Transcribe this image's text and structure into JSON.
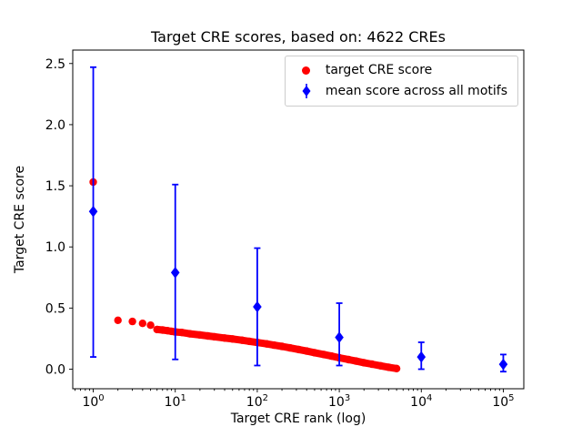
{
  "chart_data": {
    "type": "scatter",
    "title": "Target CRE scores, based on: 4622 CREs",
    "xlabel": "Target CRE rank (log)",
    "ylabel": "Target CRE score",
    "xscale": "log",
    "xlim": [
      0.5623,
      177827
    ],
    "ylim": [
      -0.16,
      2.61
    ],
    "yticks": [
      0.0,
      0.5,
      1.0,
      1.5,
      2.0,
      2.5
    ],
    "xtick_exponents": [
      0,
      1,
      2,
      3,
      4,
      5
    ],
    "grid": false,
    "legend_position": "upper right",
    "colors": {
      "target_series": "#ff0000",
      "mean_series": "#0000ff",
      "axes": "#000000",
      "legend_border": "#cccccc"
    },
    "series": [
      {
        "name": "target CRE score",
        "type": "scatter",
        "marker": "circle",
        "color": "#ff0000",
        "x": [
          1,
          2,
          3,
          4,
          5,
          6,
          7,
          8,
          9,
          10,
          12,
          15,
          20,
          25,
          30,
          40,
          50,
          65,
          80,
          100,
          130,
          160,
          200,
          250,
          320,
          400,
          500,
          650,
          800,
          1000,
          1300,
          1600,
          2000,
          2500,
          3200,
          4000,
          5000
        ],
        "y": [
          1.53,
          0.4,
          0.39,
          0.375,
          0.36,
          0.325,
          0.32,
          0.315,
          0.31,
          0.305,
          0.3,
          0.29,
          0.28,
          0.272,
          0.265,
          0.255,
          0.247,
          0.237,
          0.228,
          0.218,
          0.207,
          0.197,
          0.186,
          0.174,
          0.161,
          0.148,
          0.135,
          0.12,
          0.107,
          0.093,
          0.078,
          0.066,
          0.053,
          0.041,
          0.028,
          0.016,
          0.005
        ]
      },
      {
        "name": "mean score across all motifs",
        "type": "errorbar",
        "marker": "diamond",
        "color": "#0000ff",
        "x": [
          1,
          10,
          100,
          1000,
          10000,
          100000
        ],
        "y": [
          1.29,
          0.79,
          0.51,
          0.26,
          0.1,
          0.04
        ],
        "bar_low": [
          0.1,
          0.08,
          0.03,
          0.03,
          0.0,
          -0.02
        ],
        "bar_high": [
          2.47,
          1.51,
          0.99,
          0.54,
          0.22,
          0.12
        ]
      }
    ]
  }
}
